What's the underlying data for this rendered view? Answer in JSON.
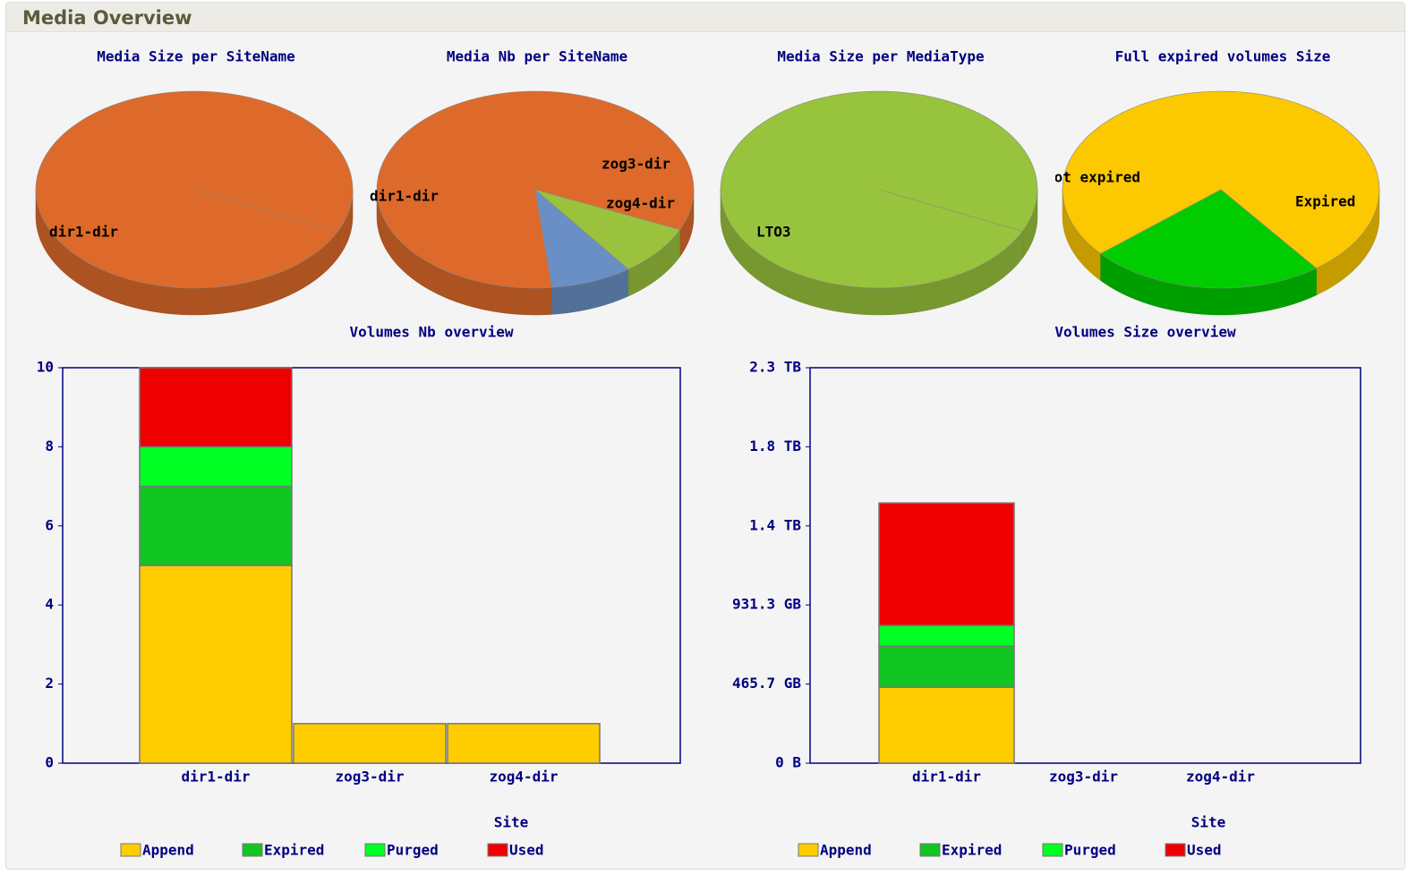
{
  "header": {
    "title": "Media Overview"
  },
  "chart_data": [
    {
      "type": "pie",
      "title": "Media Size per SiteName",
      "categories": [
        "dir1-dir"
      ],
      "values": [
        100
      ],
      "colors": [
        "#dd6a2a"
      ]
    },
    {
      "type": "pie",
      "title": "Media Nb per SiteName",
      "categories": [
        "dir1-dir",
        "zog3-dir",
        "zog4-dir"
      ],
      "values": [
        10,
        1,
        1
      ],
      "colors": [
        "#dd6a2a",
        "#6a8fc4",
        "#9ac23c"
      ]
    },
    {
      "type": "pie",
      "title": "Media Size per MediaType",
      "categories": [
        "LTO3"
      ],
      "values": [
        100
      ],
      "colors": [
        "#98c33c"
      ]
    },
    {
      "type": "pie",
      "title": "Full expired volumes Size",
      "categories": [
        "Not expired",
        "Expired"
      ],
      "values": [
        76,
        24
      ],
      "colors": [
        "#fcc800",
        "#00cc00"
      ]
    },
    {
      "type": "bar",
      "stacked": true,
      "title": "Volumes Nb overview",
      "xlabel": "Site",
      "categories": [
        "dir1-dir",
        "zog3-dir",
        "zog4-dir"
      ],
      "series": [
        {
          "name": "Append",
          "color": "#ffcc00",
          "values": [
            5,
            1,
            1
          ]
        },
        {
          "name": "Expired",
          "color": "#11c522",
          "values": [
            2,
            0,
            0
          ]
        },
        {
          "name": "Purged",
          "color": "#00ff22",
          "values": [
            1,
            0,
            0
          ]
        },
        {
          "name": "Used",
          "color": "#ee0000",
          "values": [
            2,
            0,
            0
          ]
        }
      ],
      "ylim": [
        0,
        10
      ],
      "yticks": [
        0,
        2,
        4,
        6,
        8,
        10
      ]
    },
    {
      "type": "bar",
      "stacked": true,
      "title": "Volumes Size overview",
      "xlabel": "Site",
      "categories": [
        "dir1-dir",
        "zog3-dir",
        "zog4-dir"
      ],
      "series": [
        {
          "name": "Append",
          "color": "#ffcc00",
          "values": [
            480000000000,
            0,
            0
          ]
        },
        {
          "name": "Expired",
          "color": "#11c522",
          "values": [
            260000000000,
            0,
            0
          ]
        },
        {
          "name": "Purged",
          "color": "#00ff22",
          "values": [
            130000000000,
            0,
            0
          ]
        },
        {
          "name": "Used",
          "color": "#ee0000",
          "values": [
            775000000000,
            0,
            0
          ]
        }
      ],
      "ylim": [
        0,
        2500000000000
      ],
      "yticks": [
        {
          "value": 0,
          "label": "0 B"
        },
        {
          "value": 500000000000,
          "label": "465.7 GB"
        },
        {
          "value": 1000000000000,
          "label": "931.3 GB"
        },
        {
          "value": 1500000000000,
          "label": "1.4 TB"
        },
        {
          "value": 2000000000000,
          "label": "1.8 TB"
        },
        {
          "value": 2500000000000,
          "label": "2.3 TB"
        }
      ]
    }
  ]
}
